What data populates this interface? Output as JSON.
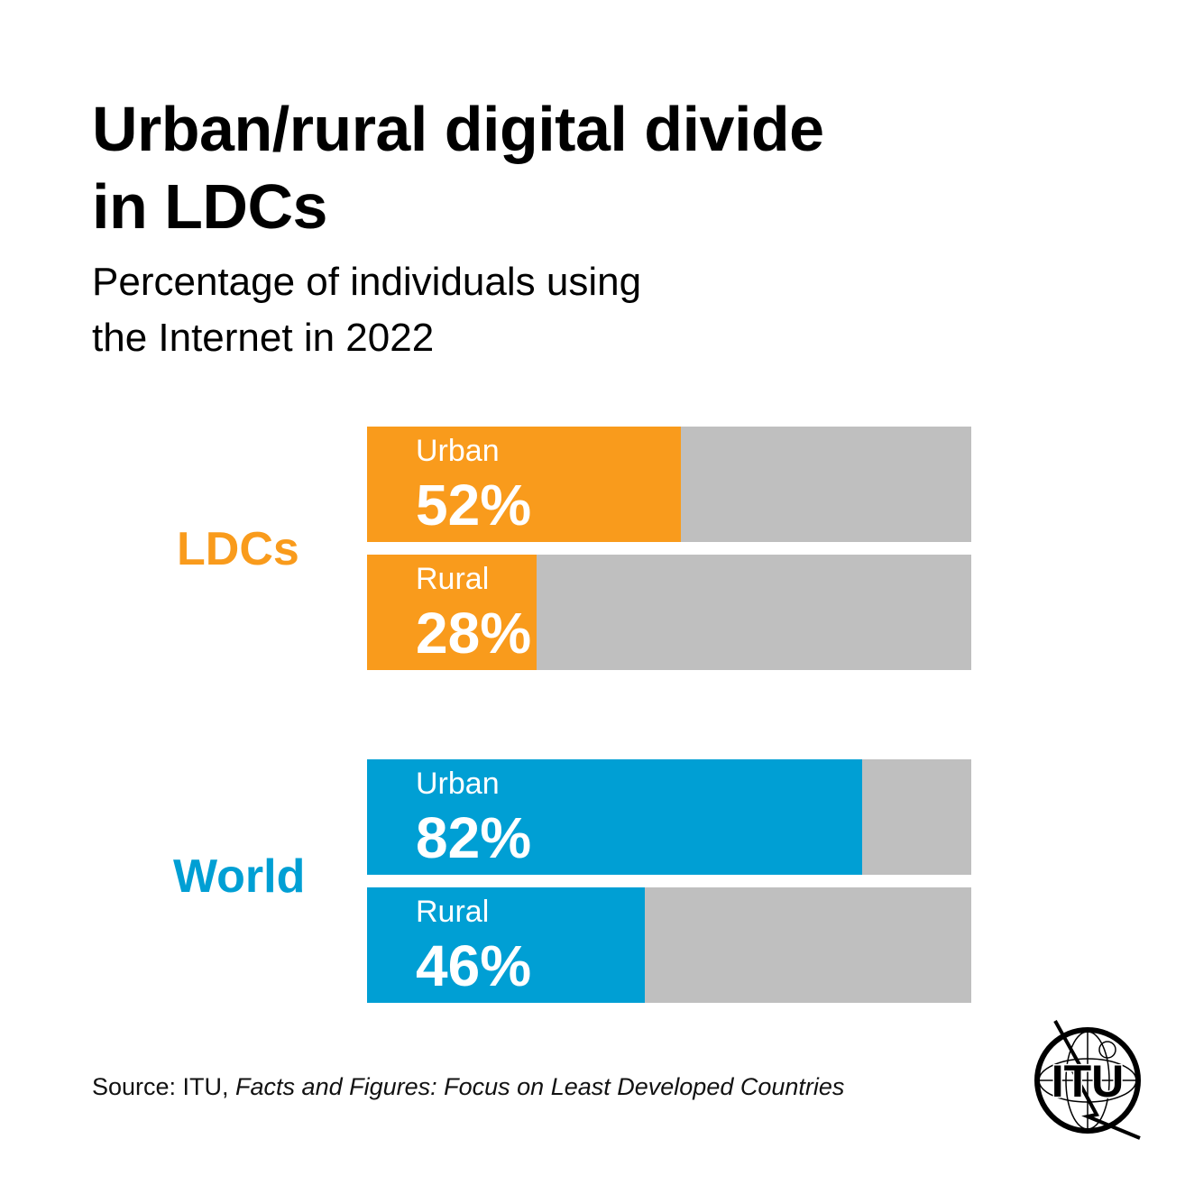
{
  "title_line1": "Urban/rural digital divide",
  "title_line2": "in LDCs",
  "subtitle_line1": "Percentage of individuals using",
  "subtitle_line2": "the Internet in 2022",
  "source": {
    "prefix": "Source: ITU, ",
    "publication": "Facts and Figures: Focus on Least Developed Countries"
  },
  "logo": {
    "text": "ITU"
  },
  "chart_data": {
    "type": "bar",
    "orientation": "horizontal",
    "title": "Urban/rural digital divide in LDCs",
    "subtitle": "Percentage of individuals using the Internet in 2022",
    "unit": "%",
    "xlim": [
      0,
      100
    ],
    "groups": [
      {
        "name": "LDCs",
        "color": "#f99b1c",
        "bars": [
          {
            "category": "Urban",
            "value": 52,
            "label": "52%"
          },
          {
            "category": "Rural",
            "value": 28,
            "label": "28%"
          }
        ]
      },
      {
        "name": "World",
        "color": "#009fd4",
        "bars": [
          {
            "category": "Urban",
            "value": 82,
            "label": "82%"
          },
          {
            "category": "Rural",
            "value": 46,
            "label": "46%"
          }
        ]
      }
    ],
    "track_color": "#bfbfbf"
  }
}
